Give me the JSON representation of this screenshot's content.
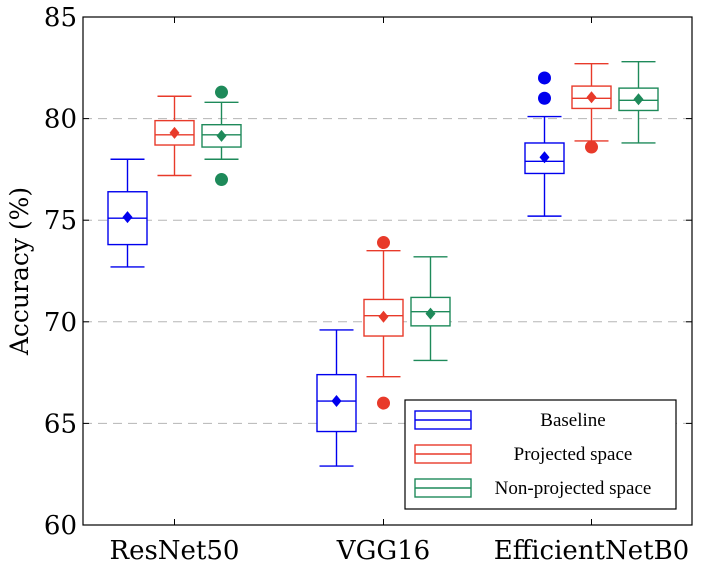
{
  "chart_data": {
    "type": "boxplot",
    "ylabel": "Accuracy (%)",
    "ylim": [
      60,
      85
    ],
    "yticks": [
      60,
      65,
      70,
      75,
      80,
      85
    ],
    "grid": "horizontal-dashed",
    "legend_position": "bottom-right",
    "categories": [
      "ResNet50",
      "VGG16",
      "EfficientNetB0"
    ],
    "series": [
      {
        "name": "Baseline",
        "color": "#0000ee",
        "boxes": [
          {
            "whisker_low": 72.7,
            "q1": 73.8,
            "median": 75.1,
            "q3": 76.4,
            "whisker_high": 78.0,
            "mean": 75.15,
            "outliers": []
          },
          {
            "whisker_low": 62.9,
            "q1": 64.6,
            "median": 66.1,
            "q3": 67.4,
            "whisker_high": 69.6,
            "mean": 66.1,
            "outliers": []
          },
          {
            "whisker_low": 75.2,
            "q1": 77.3,
            "median": 77.9,
            "q3": 78.8,
            "whisker_high": 80.1,
            "mean": 78.1,
            "outliers": [
              81.0,
              82.0
            ]
          }
        ]
      },
      {
        "name": "Projected space",
        "color": "#e83a2a",
        "boxes": [
          {
            "whisker_low": 77.2,
            "q1": 78.7,
            "median": 79.2,
            "q3": 79.9,
            "whisker_high": 81.1,
            "mean": 79.3,
            "outliers": []
          },
          {
            "whisker_low": 67.3,
            "q1": 69.3,
            "median": 70.3,
            "q3": 71.1,
            "whisker_high": 73.5,
            "mean": 70.25,
            "outliers": [
              66.0,
              73.9
            ]
          },
          {
            "whisker_low": 78.9,
            "q1": 80.5,
            "median": 81.0,
            "q3": 81.6,
            "whisker_high": 82.7,
            "mean": 81.05,
            "outliers": [
              78.6
            ]
          }
        ]
      },
      {
        "name": "Non-projected space",
        "color": "#1e8a5a",
        "boxes": [
          {
            "whisker_low": 78.0,
            "q1": 78.6,
            "median": 79.2,
            "q3": 79.7,
            "whisker_high": 80.8,
            "mean": 79.15,
            "outliers": [
              77.0,
              81.3
            ]
          },
          {
            "whisker_low": 68.1,
            "q1": 69.8,
            "median": 70.5,
            "q3": 71.2,
            "whisker_high": 73.2,
            "mean": 70.4,
            "outliers": []
          },
          {
            "whisker_low": 78.8,
            "q1": 80.4,
            "median": 80.9,
            "q3": 81.5,
            "whisker_high": 82.8,
            "mean": 80.95,
            "outliers": []
          }
        ]
      }
    ]
  }
}
